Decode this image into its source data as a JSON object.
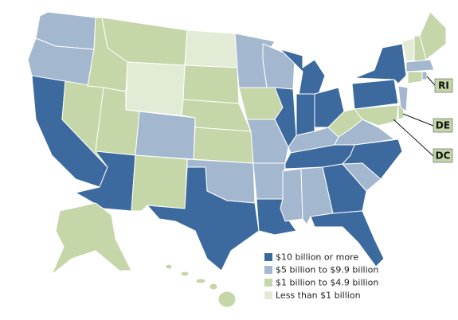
{
  "legend": {
    "items": [
      {
        "label": "$10 billion or more",
        "color": "#3d6a9e"
      },
      {
        "label": "$5 billion to $9.9 billion",
        "color": "#a3b7cf"
      },
      {
        "label": "$1 billion to $4.9 billion",
        "color": "#c5d6a8"
      },
      {
        "label": "Less than $1 billion",
        "color": "#e2ebd5"
      }
    ]
  },
  "callouts": [
    {
      "label": "RI"
    },
    {
      "label": "DE"
    },
    {
      "label": "DC"
    }
  ]
}
